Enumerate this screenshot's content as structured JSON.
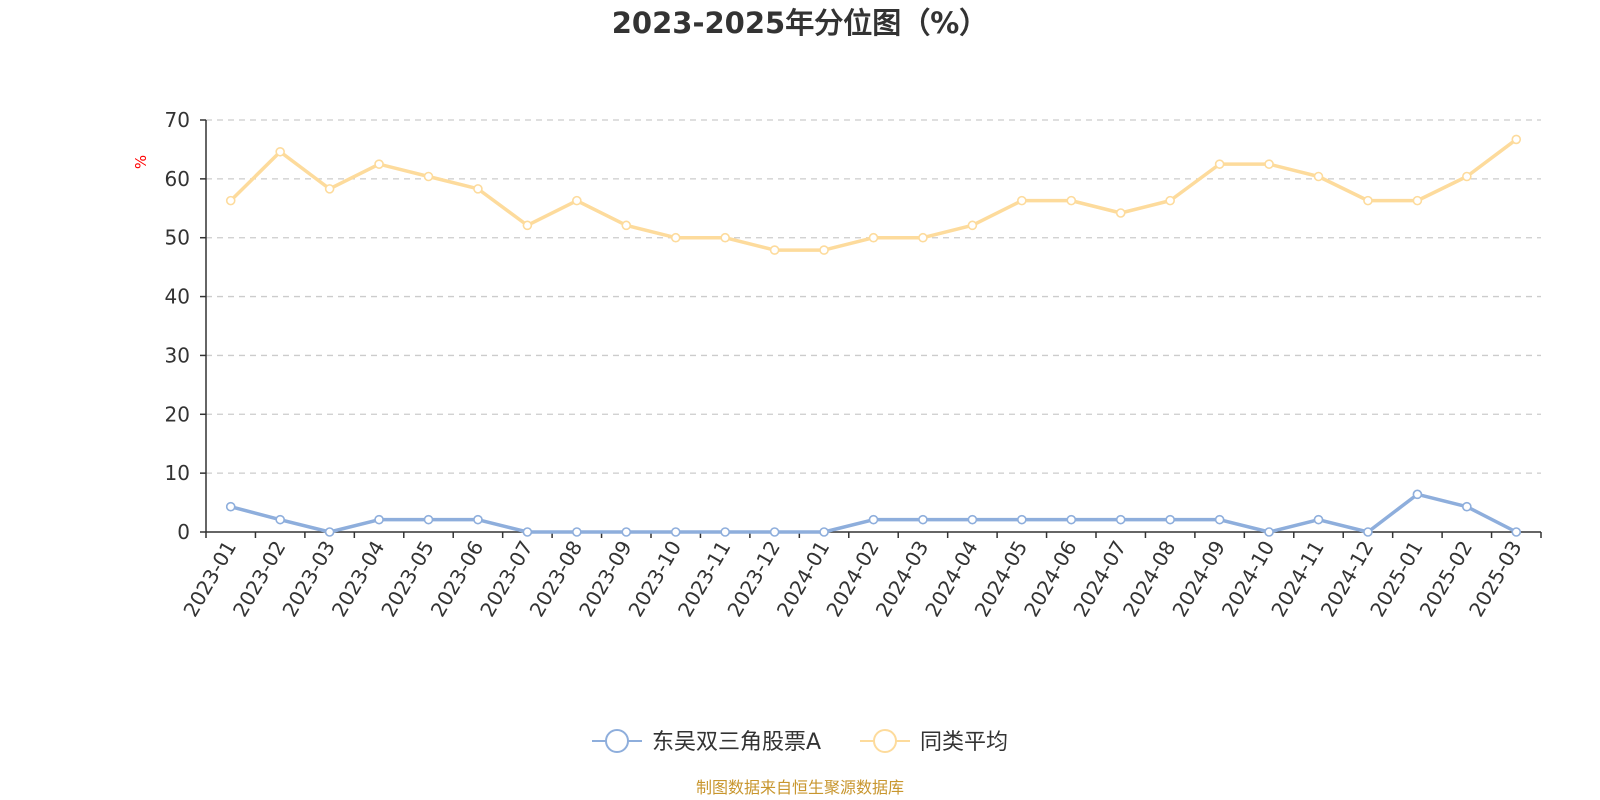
{
  "chart_data": {
    "type": "line",
    "title": "2023-2025年分位图（%）",
    "ylabel": "%",
    "xlabel": "",
    "ylim": [
      0,
      70
    ],
    "yticks": [
      0,
      10,
      20,
      30,
      40,
      50,
      60,
      70
    ],
    "grid": true,
    "legend_position": "bottom",
    "categories": [
      "2023-01",
      "2023-02",
      "2023-03",
      "2023-04",
      "2023-05",
      "2023-06",
      "2023-07",
      "2023-08",
      "2023-09",
      "2023-10",
      "2023-11",
      "2023-12",
      "2024-01",
      "2024-02",
      "2024-03",
      "2024-04",
      "2024-05",
      "2024-06",
      "2024-07",
      "2024-08",
      "2024-09",
      "2024-10",
      "2024-11",
      "2024-12",
      "2025-01",
      "2025-02",
      "2025-03"
    ],
    "series": [
      {
        "name": "东吴双三角股票A",
        "color": "#8eaedc",
        "values": [
          4.3,
          2.1,
          0,
          2.1,
          2.1,
          2.1,
          0,
          0,
          0,
          0,
          0,
          0,
          0,
          2.1,
          2.1,
          2.1,
          2.1,
          2.1,
          2.1,
          2.1,
          2.1,
          0,
          2.1,
          0,
          6.4,
          4.3,
          0
        ]
      },
      {
        "name": "同类平均",
        "color": "#fddb9c",
        "values": [
          56.3,
          64.6,
          58.3,
          62.5,
          60.4,
          58.3,
          52.1,
          56.3,
          52.1,
          50.0,
          50.0,
          47.9,
          47.9,
          50.0,
          50.0,
          52.1,
          56.3,
          56.3,
          54.2,
          56.3,
          62.5,
          62.5,
          60.4,
          56.3,
          56.3,
          60.4,
          66.7
        ]
      }
    ]
  },
  "source_note": "制图数据来自恒生聚源数据库"
}
